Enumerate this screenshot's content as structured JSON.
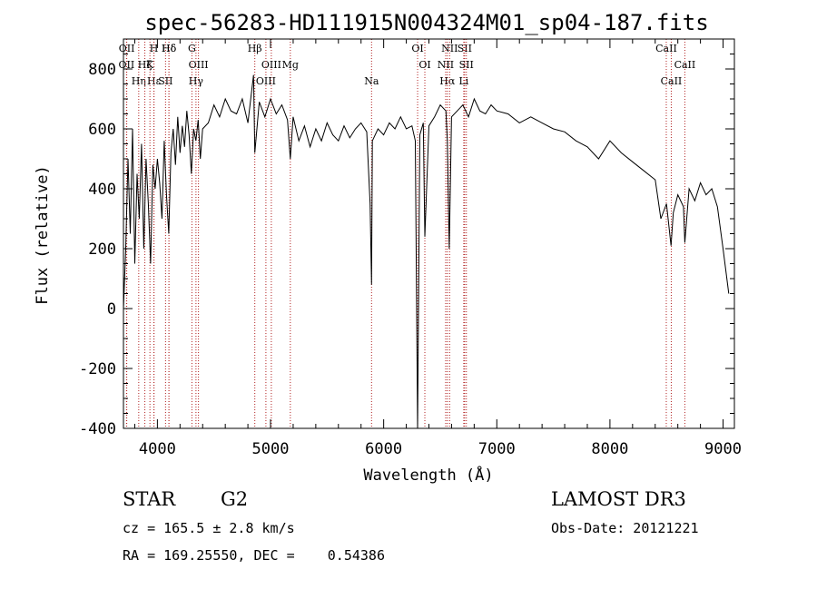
{
  "chart_data": {
    "type": "line",
    "title": "spec-56283-HD111915N004324M01_sp04-187.fits",
    "xlabel": "Wavelength (Å)",
    "ylabel": "Flux (relative)",
    "xlim": [
      3700,
      9100
    ],
    "ylim": [
      -400,
      900
    ],
    "x_ticks": [
      4000,
      5000,
      6000,
      7000,
      8000,
      9000
    ],
    "y_ticks": [
      -400,
      -200,
      0,
      200,
      400,
      600,
      800
    ],
    "spectral_lines": [
      {
        "label": "Hδ",
        "wavelength": 4102
      },
      {
        "label": "OII",
        "wavelength": 3727
      },
      {
        "label": "Hε",
        "wavelength": 3970
      },
      {
        "label": "OII",
        "wavelength": 3729
      },
      {
        "label": "K",
        "wavelength": 3934
      },
      {
        "label": "Hη",
        "wavelength": 3835
      },
      {
        "label": "H",
        "wavelength": 3969
      },
      {
        "label": "Hζ",
        "wavelength": 3889
      },
      {
        "label": "SII",
        "wavelength": 4072
      },
      {
        "label": "Hδ",
        "wavelength": 4102
      },
      {
        "label": "OIII",
        "wavelength": 4363
      },
      {
        "label": "Hγ",
        "wavelength": 4341
      },
      {
        "label": "G",
        "wavelength": 4305
      },
      {
        "label": "OIII",
        "wavelength": 5007
      },
      {
        "label": "OIII",
        "wavelength": 4959
      },
      {
        "label": "Hβ",
        "wavelength": 4861
      },
      {
        "label": "Mg",
        "wavelength": 5175
      },
      {
        "label": "Na",
        "wavelength": 5893
      },
      {
        "label": "OI",
        "wavelength": 6300
      },
      {
        "label": "OI",
        "wavelength": 6364
      },
      {
        "label": "Hα",
        "wavelength": 6563
      },
      {
        "label": "SII",
        "wavelength": 6716
      },
      {
        "label": "NII",
        "wavelength": 6548
      },
      {
        "label": "Li",
        "wavelength": 6708
      },
      {
        "label": "NII",
        "wavelength": 6583
      },
      {
        "label": "SII",
        "wavelength": 6731
      },
      {
        "label": "CaII",
        "wavelength": 8542
      },
      {
        "label": "CaII",
        "wavelength": 8498
      },
      {
        "label": "CaII",
        "wavelength": 8662
      }
    ],
    "series": [
      {
        "name": "flux",
        "x": [
          3700,
          3720,
          3740,
          3760,
          3780,
          3800,
          3820,
          3840,
          3860,
          3880,
          3900,
          3920,
          3940,
          3960,
          3980,
          4000,
          4020,
          4040,
          4060,
          4080,
          4100,
          4120,
          4140,
          4160,
          4180,
          4200,
          4220,
          4240,
          4260,
          4280,
          4300,
          4320,
          4340,
          4360,
          4380,
          4400,
          4450,
          4500,
          4550,
          4600,
          4650,
          4700,
          4750,
          4800,
          4850,
          4861,
          4900,
          4950,
          5000,
          5050,
          5100,
          5150,
          5175,
          5200,
          5250,
          5300,
          5350,
          5400,
          5450,
          5500,
          5550,
          5600,
          5650,
          5700,
          5750,
          5800,
          5850,
          5880,
          5893,
          5900,
          5950,
          6000,
          6050,
          6100,
          6150,
          6200,
          6250,
          6280,
          6300,
          6320,
          6350,
          6364,
          6400,
          6450,
          6500,
          6550,
          6563,
          6580,
          6600,
          6650,
          6700,
          6750,
          6800,
          6850,
          6900,
          6950,
          7000,
          7100,
          7200,
          7300,
          7400,
          7500,
          7600,
          7700,
          7800,
          7900,
          8000,
          8100,
          8200,
          8300,
          8400,
          8450,
          8500,
          8540,
          8560,
          8600,
          8650,
          8662,
          8700,
          8750,
          8800,
          8850,
          8900,
          8950,
          9000,
          9050
        ],
        "values": [
          0,
          200,
          500,
          250,
          600,
          150,
          450,
          300,
          550,
          200,
          500,
          350,
          150,
          480,
          400,
          500,
          420,
          300,
          560,
          380,
          250,
          520,
          600,
          480,
          640,
          520,
          610,
          540,
          660,
          580,
          450,
          600,
          560,
          630,
          500,
          600,
          620,
          680,
          640,
          700,
          660,
          650,
          700,
          620,
          780,
          520,
          690,
          640,
          700,
          650,
          680,
          630,
          500,
          640,
          560,
          610,
          540,
          600,
          560,
          620,
          580,
          560,
          610,
          570,
          600,
          620,
          590,
          350,
          80,
          560,
          600,
          580,
          620,
          600,
          640,
          600,
          610,
          560,
          -400,
          580,
          620,
          240,
          610,
          640,
          680,
          660,
          560,
          200,
          640,
          660,
          680,
          640,
          700,
          660,
          650,
          680,
          660,
          650,
          620,
          640,
          620,
          600,
          590,
          560,
          540,
          500,
          560,
          520,
          490,
          460,
          430,
          300,
          350,
          210,
          320,
          380,
          340,
          220,
          400,
          360,
          420,
          380,
          400,
          340,
          200,
          50
        ]
      }
    ]
  },
  "info": {
    "object_class": "STAR",
    "subclass": "G2",
    "survey": "LAMOST DR3",
    "redshift_line": "cz = 165.5 ± 2.8 km/s",
    "obs_date": "Obs-Date: 20121221",
    "coords": "RA = 169.25550, DEC =    0.54386"
  },
  "colors": {
    "line_marker": "#b22222",
    "spectrum": "#000000"
  }
}
